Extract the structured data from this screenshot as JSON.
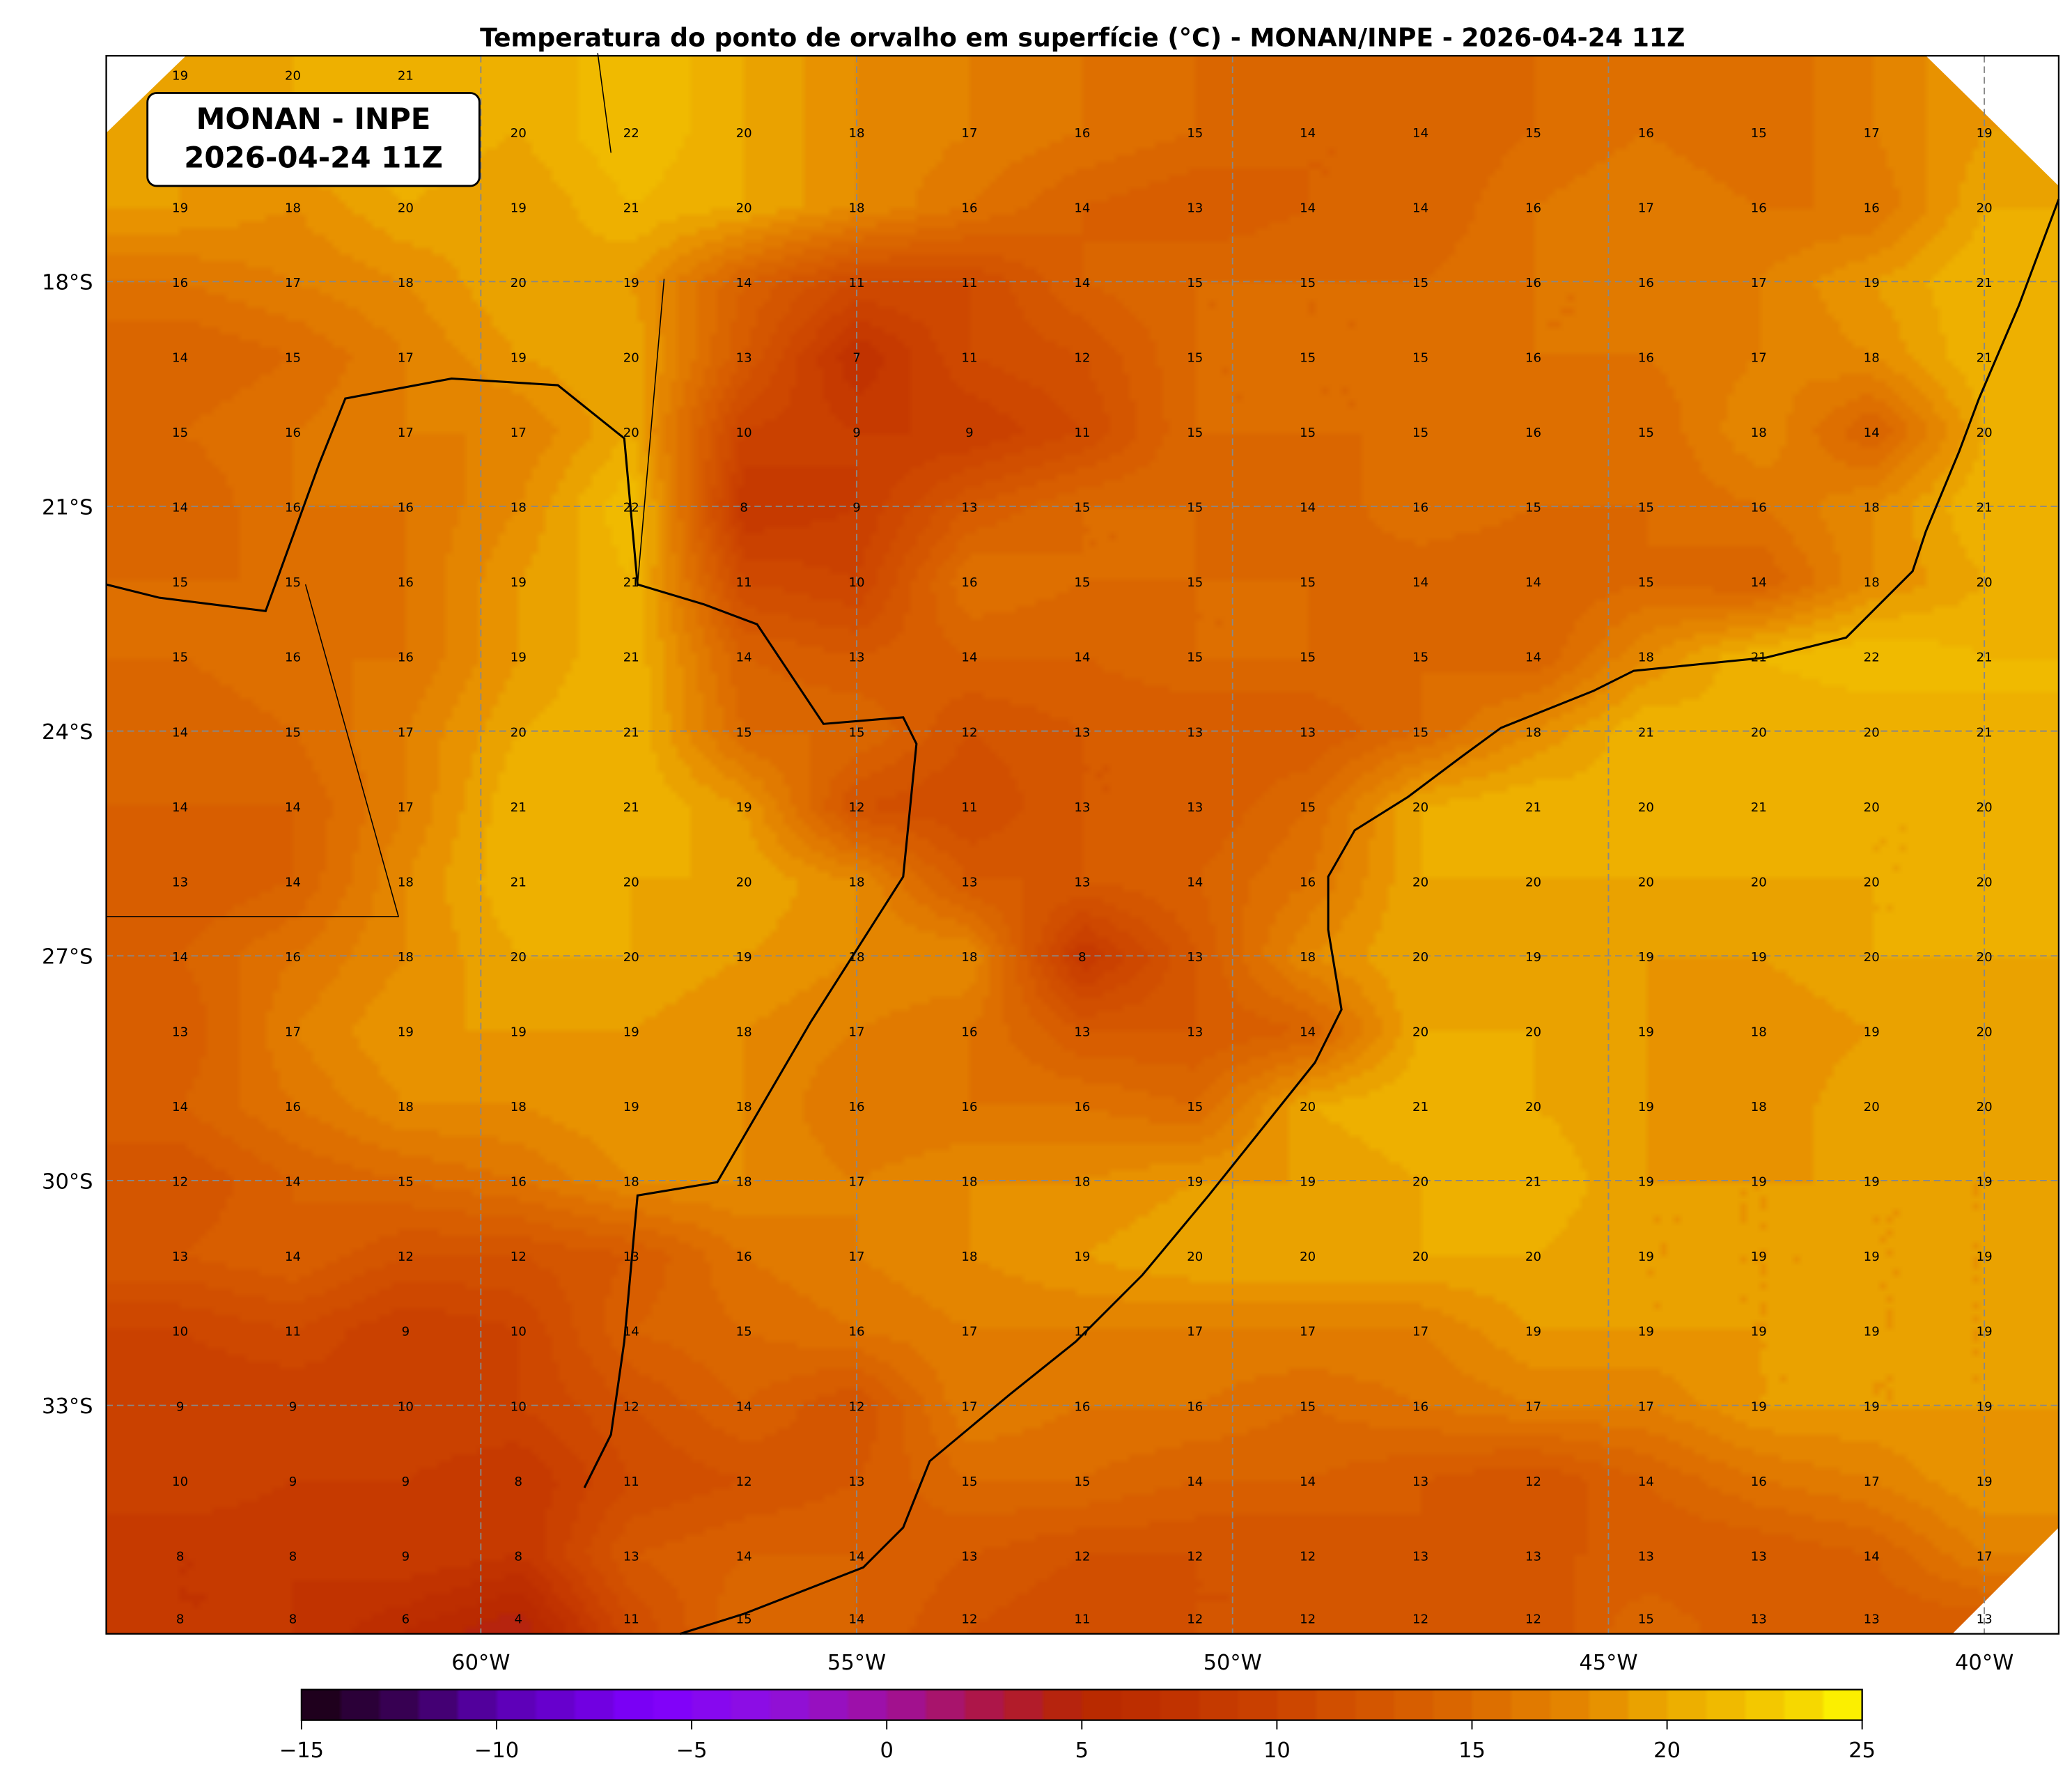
{
  "title": "Temperatura do ponto de orvalho em superfície (°C) - MONAN/INPE - 2026-04-24 11Z",
  "annotation": {
    "line1": "MONAN - INPE",
    "line2": "2026-04-24 11Z"
  },
  "map": {
    "lon_range": [
      -65,
      -39
    ],
    "lat_range": [
      -36.1,
      -15
    ],
    "lon_ticks": [
      "60°W",
      "55°W",
      "50°W",
      "45°W",
      "40°W"
    ],
    "lon_tick_values": [
      -60,
      -55,
      -50,
      -45,
      -40
    ],
    "lat_ticks": [
      "18°S",
      "21°S",
      "24°S",
      "27°S",
      "30°S",
      "33°S"
    ],
    "lat_tick_values": [
      -18,
      -21,
      -24,
      -27,
      -30,
      -33
    ],
    "gridlines": "dashed gray"
  },
  "colorbar": {
    "min": -15,
    "max": 25,
    "step": 1,
    "ticks": [
      "−15",
      "−10",
      "−5",
      "0",
      "5",
      "10",
      "15",
      "20",
      "25"
    ],
    "tick_values": [
      -15,
      -10,
      -5,
      0,
      5,
      10,
      15,
      20,
      25
    ],
    "colormap_anchors": [
      [
        -15,
        "#1a0010"
      ],
      [
        -12,
        "#3d0060"
      ],
      [
        -10,
        "#5a00b0"
      ],
      [
        -6,
        "#7f00ff"
      ],
      [
        -3,
        "#8f10e0"
      ],
      [
        0,
        "#a010a0"
      ],
      [
        3,
        "#b01838"
      ],
      [
        5,
        "#b82800"
      ],
      [
        7,
        "#bf3000"
      ],
      [
        10,
        "#cc4400"
      ],
      [
        13,
        "#d65a00"
      ],
      [
        15,
        "#dc6a00"
      ],
      [
        18,
        "#e68a00"
      ],
      [
        20,
        "#ecaa00"
      ],
      [
        22,
        "#f2c000"
      ],
      [
        24,
        "#f8e000"
      ],
      [
        25,
        "#ffff00"
      ]
    ]
  },
  "chart_data": {
    "type": "heatmap",
    "title": "Temperatura do ponto de orvalho em superfície (°C) - MONAN/INPE - 2026-04-24 11Z",
    "units": "°C",
    "lons": [
      -64,
      -62.5,
      -61,
      -59.5,
      -58,
      -56.5,
      -55,
      -53.5,
      -52,
      -50.5,
      -49,
      -47.5,
      -46,
      -44.5,
      -43,
      -41.5,
      -40
    ],
    "lats": [
      -16,
      -17,
      -18,
      -19,
      -20,
      -21,
      -22,
      -23,
      -24,
      -25,
      -26,
      -27,
      -28,
      -29,
      -30,
      -31,
      -32,
      -33,
      -34,
      -35,
      -36
    ],
    "values": [
      [
        19,
        20,
        21,
        20,
        22,
        20,
        18,
        17,
        16,
        15,
        14,
        14,
        15,
        16,
        15,
        17,
        19
      ],
      [
        19,
        18,
        20,
        19,
        21,
        20,
        18,
        16,
        14,
        13,
        14,
        14,
        16,
        17,
        16,
        16,
        20
      ],
      [
        16,
        17,
        18,
        20,
        19,
        14,
        11,
        11,
        14,
        15,
        15,
        15,
        16,
        16,
        17,
        19,
        21
      ],
      [
        14,
        15,
        17,
        19,
        20,
        13,
        7,
        11,
        12,
        15,
        15,
        15,
        16,
        16,
        17,
        18,
        21
      ],
      [
        15,
        16,
        17,
        17,
        20,
        10,
        9,
        9,
        11,
        15,
        15,
        15,
        16,
        15,
        18,
        14,
        20
      ],
      [
        14,
        16,
        16,
        18,
        22,
        8,
        9,
        13,
        15,
        15,
        14,
        16,
        15,
        15,
        16,
        18,
        21
      ],
      [
        15,
        15,
        16,
        19,
        21,
        11,
        10,
        16,
        15,
        15,
        15,
        14,
        14,
        15,
        14,
        18,
        20
      ],
      [
        15,
        16,
        16,
        19,
        21,
        14,
        13,
        14,
        14,
        15,
        15,
        15,
        14,
        18,
        21,
        22,
        21
      ],
      [
        14,
        15,
        17,
        20,
        21,
        15,
        15,
        12,
        13,
        13,
        13,
        15,
        18,
        21,
        20,
        20,
        21
      ],
      [
        14,
        14,
        17,
        21,
        21,
        19,
        12,
        11,
        13,
        13,
        15,
        20,
        21,
        20,
        21,
        20,
        20
      ],
      [
        13,
        14,
        18,
        21,
        20,
        20,
        18,
        13,
        13,
        14,
        16,
        20,
        20,
        20,
        20,
        20,
        20
      ],
      [
        14,
        16,
        18,
        20,
        20,
        19,
        18,
        18,
        8,
        13,
        18,
        20,
        19,
        19,
        19,
        20,
        20
      ],
      [
        13,
        17,
        19,
        19,
        19,
        18,
        17,
        16,
        13,
        13,
        14,
        20,
        20,
        19,
        18,
        19,
        20
      ],
      [
        14,
        16,
        18,
        18,
        19,
        18,
        16,
        16,
        16,
        15,
        20,
        21,
        20,
        19,
        18,
        20,
        20
      ],
      [
        12,
        14,
        15,
        16,
        18,
        18,
        17,
        18,
        18,
        19,
        19,
        20,
        21,
        19,
        19,
        19,
        19
      ],
      [
        13,
        14,
        12,
        12,
        13,
        16,
        17,
        18,
        19,
        20,
        20,
        20,
        20,
        19,
        19,
        19,
        19
      ],
      [
        10,
        11,
        9,
        10,
        14,
        15,
        16,
        17,
        17,
        17,
        17,
        17,
        19,
        19,
        19,
        19,
        19
      ],
      [
        9,
        9,
        10,
        10,
        12,
        14,
        12,
        17,
        16,
        16,
        15,
        16,
        17,
        17,
        19,
        19,
        19
      ],
      [
        10,
        9,
        9,
        8,
        11,
        12,
        13,
        15,
        15,
        14,
        14,
        13,
        12,
        14,
        16,
        17,
        19
      ],
      [
        8,
        8,
        9,
        8,
        13,
        14,
        14,
        13,
        12,
        12,
        12,
        13,
        13,
        13,
        13,
        14,
        17
      ],
      [
        8,
        8,
        6,
        4,
        11,
        15,
        14,
        12,
        11,
        12,
        12,
        12,
        12,
        15,
        13,
        13,
        13
      ]
    ]
  }
}
